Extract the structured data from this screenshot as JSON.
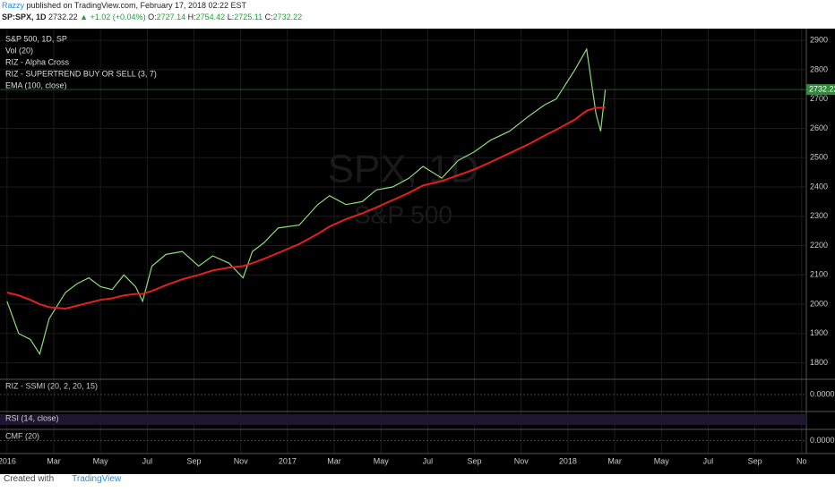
{
  "header": {
    "publisher": "Razzy",
    "published": "published on TradingView.com, February 17, 2018 02:22 EST",
    "symbol": "SP:SPX, 1D",
    "last": "2732.22",
    "change": "▲ +1.02 (+0.04%)",
    "ohlc": [
      {
        "key": "O:",
        "value": "2727.14"
      },
      {
        "key": "H:",
        "value": "2754.42"
      },
      {
        "key": "L:",
        "value": "2725.11"
      },
      {
        "key": "C:",
        "value": "2732.22"
      }
    ]
  },
  "legend": [
    "Vol (20)",
    "RIZ - Alpha Cross",
    "RIZ - SUPERTREND BUY OR SELL  (3, 7)"
  ],
  "watermark": {
    "symbol": "SPX, 1D",
    "name": "S&P 500"
  },
  "panels": [
    {
      "label": "RIZ - SSMI (20, 2, 20, 15)",
      "scale": "0.0000"
    },
    {
      "label": "RSI (14, close)"
    },
    {
      "label": "CMF (20)",
      "scale": "0.0000"
    }
  ],
  "footer": {
    "created": "Created with",
    "brand": "TradingView"
  },
  "chart_data": {
    "type": "line",
    "x": [
      0,
      0.5,
      1.0,
      1.4,
      1.8,
      2.5,
      3.0,
      3.5,
      4.0,
      4.5,
      5.0,
      5.5,
      5.8,
      6.2,
      6.8,
      7.5,
      8.2,
      8.8,
      9.5,
      10.1,
      10.5,
      11.0,
      11.6,
      12.5,
      13.3,
      13.8,
      14.5,
      15.2,
      15.8,
      16.5,
      17.2,
      17.8,
      18.6,
      19.3,
      20.0,
      20.7,
      21.5,
      22.3,
      23.0,
      23.5,
      24.3,
      24.8,
      25.2,
      25.4,
      25.6
    ],
    "series": [
      {
        "name": "S&P 500, 1D, SP",
        "color": "#8fdc7a",
        "values": [
          2010,
          1900,
          1880,
          1830,
          1950,
          2040,
          2070,
          2090,
          2060,
          2050,
          2100,
          2060,
          2010,
          2130,
          2170,
          2180,
          2130,
          2165,
          2140,
          2090,
          2180,
          2210,
          2260,
          2270,
          2340,
          2370,
          2340,
          2350,
          2390,
          2400,
          2430,
          2470,
          2430,
          2490,
          2520,
          2560,
          2590,
          2640,
          2680,
          2700,
          2800,
          2870,
          2650,
          2590,
          2732.22
        ]
      },
      {
        "name": "EMA (100, close)",
        "color": "#e3201e",
        "values": [
          2040,
          2030,
          2015,
          2000,
          1990,
          1985,
          1995,
          2005,
          2015,
          2020,
          2030,
          2035,
          2035,
          2045,
          2065,
          2085,
          2100,
          2115,
          2125,
          2130,
          2140,
          2155,
          2175,
          2205,
          2240,
          2265,
          2290,
          2310,
          2330,
          2355,
          2380,
          2405,
          2420,
          2440,
          2460,
          2485,
          2515,
          2545,
          2575,
          2595,
          2630,
          2660,
          2670,
          2670,
          2672
        ]
      }
    ],
    "xlim": [
      -0.3,
      34.2
    ],
    "xticks": [
      {
        "value": 0,
        "label": "2016"
      },
      {
        "value": 2,
        "label": "Mar"
      },
      {
        "value": 4,
        "label": "May"
      },
      {
        "value": 6,
        "label": "Jul"
      },
      {
        "value": 8,
        "label": "Sep"
      },
      {
        "value": 10,
        "label": "Nov"
      },
      {
        "value": 12,
        "label": "2017"
      },
      {
        "value": 14,
        "label": "Mar"
      },
      {
        "value": 16,
        "label": "May"
      },
      {
        "value": 18,
        "label": "Jul"
      },
      {
        "value": 20,
        "label": "Sep"
      },
      {
        "value": 22,
        "label": "Nov"
      },
      {
        "value": 24,
        "label": "2018"
      },
      {
        "value": 26,
        "label": "Mar"
      },
      {
        "value": 28,
        "label": "May"
      },
      {
        "value": 30,
        "label": "Jul"
      },
      {
        "value": 32,
        "label": "Sep"
      },
      {
        "value": 34,
        "label": "No"
      }
    ],
    "ylim": [
      1744,
      2940
    ],
    "yticks": [
      1800,
      1900,
      2000,
      2100,
      2200,
      2300,
      2400,
      2500,
      2600,
      2700,
      2800,
      2900
    ],
    "grid": true
  }
}
